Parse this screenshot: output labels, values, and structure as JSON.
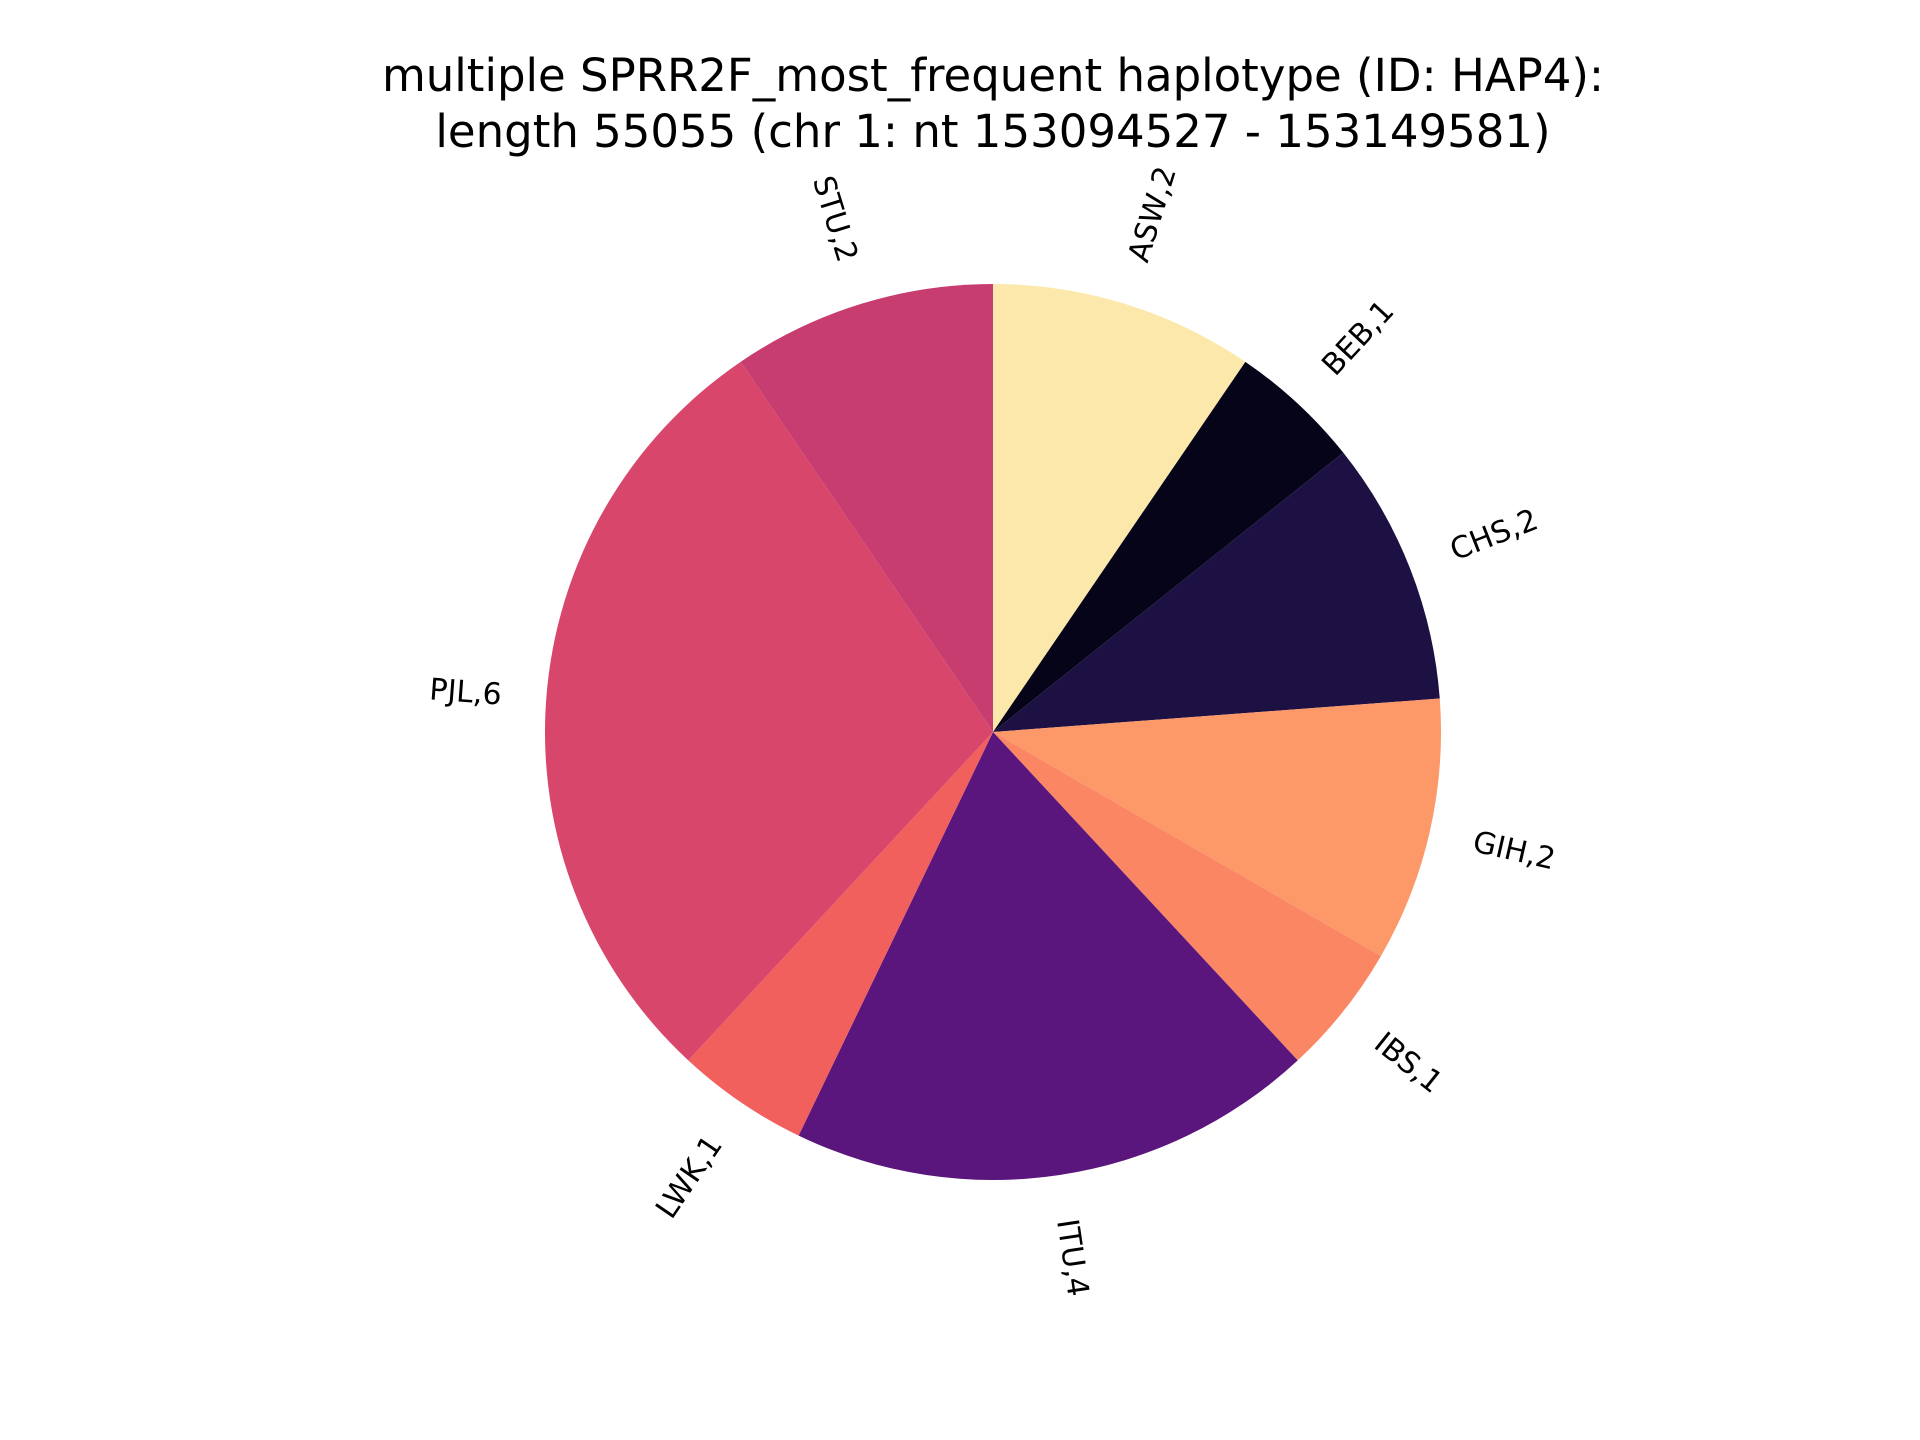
{
  "chart_data": {
    "type": "pie",
    "title_lines": [
      "multiple SPRR2F_most_frequent haplotype (ID: HAP4):",
      "length 55055 (chr 1: nt 153094527 - 153149581)"
    ],
    "start_angle_deg": 90,
    "direction": "clockwise",
    "slices": [
      {
        "category": "ASW",
        "value": 2,
        "label": "ASW,2",
        "color": "#fce8ab"
      },
      {
        "category": "BEB",
        "value": 1,
        "label": "BEB,1",
        "color": "#050419"
      },
      {
        "category": "CHS",
        "value": 2,
        "label": "CHS,2",
        "color": "#1c1142"
      },
      {
        "category": "GIH",
        "value": 2,
        "label": "GIH,2",
        "color": "#fd9869"
      },
      {
        "category": "IBS",
        "value": 1,
        "label": "IBS,1",
        "color": "#fb8664"
      },
      {
        "category": "ITU",
        "value": 4,
        "label": "ITU,4",
        "color": "#5a167c"
      },
      {
        "category": "LWK",
        "value": 1,
        "label": "LWK,1",
        "color": "#f1605d"
      },
      {
        "category": "PJL",
        "value": 6,
        "label": "PJL,6",
        "color": "#d8466b"
      },
      {
        "category": "STU",
        "value": 2,
        "label": "STU,2",
        "color": "#c83d70"
      }
    ]
  }
}
